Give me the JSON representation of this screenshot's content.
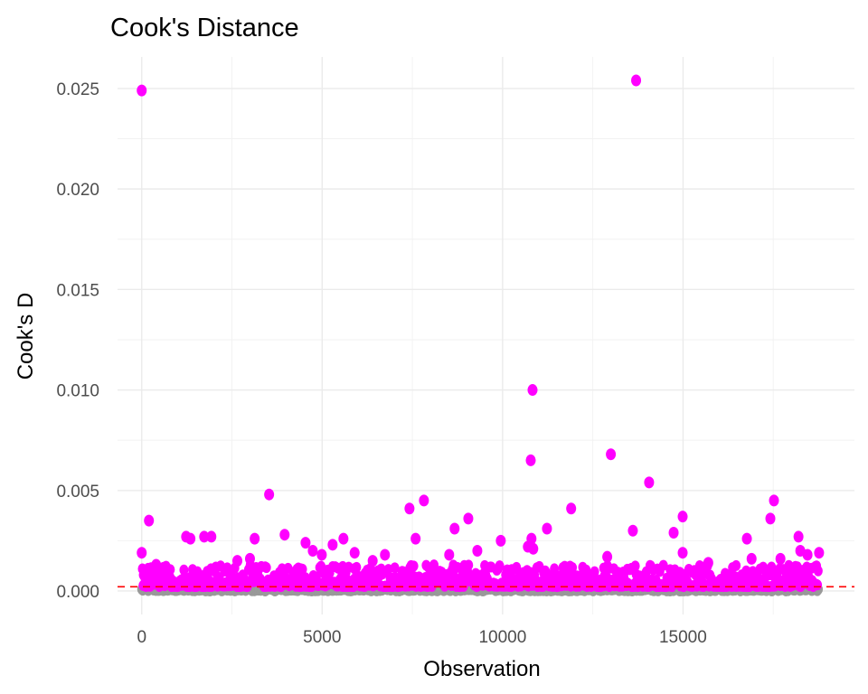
{
  "chart_data": {
    "type": "scatter",
    "title": "Cook's Distance",
    "xlabel": "Observation",
    "ylabel": "Cook's D",
    "xlim": [
      -670,
      19750
    ],
    "ylim": [
      -0.00117,
      0.02657
    ],
    "x_ticks": [
      0,
      5000,
      10000,
      15000
    ],
    "x_tick_labels": [
      "0",
      "5000",
      "10000",
      "15000"
    ],
    "y_ticks": [
      0,
      0.005,
      0.01,
      0.015,
      0.02,
      0.025
    ],
    "y_tick_labels": [
      "0.000",
      "0.005",
      "0.010",
      "0.015",
      "0.020",
      "0.025"
    ],
    "grid": true,
    "threshold": {
      "value": 0.00021,
      "color": "#FF0000",
      "style": "dashed"
    },
    "n_observations": 18750,
    "colors": {
      "influential": "#FF00FF",
      "normal": "#999999"
    },
    "influential_points": [
      [
        0,
        0.0249
      ],
      [
        13700,
        0.0254
      ],
      [
        10830,
        0.01
      ],
      [
        10780,
        0.0065
      ],
      [
        13000,
        0.0068
      ],
      [
        14060,
        0.0054
      ],
      [
        3530,
        0.0048
      ],
      [
        7420,
        0.0041
      ],
      [
        7820,
        0.0045
      ],
      [
        17520,
        0.0045
      ],
      [
        17420,
        0.0036
      ],
      [
        11900,
        0.0041
      ],
      [
        14990,
        0.0037
      ],
      [
        9050,
        0.0036
      ],
      [
        8670,
        0.0031
      ],
      [
        200,
        0.0035
      ],
      [
        11230,
        0.0031
      ],
      [
        13610,
        0.003
      ],
      [
        14740,
        0.0029
      ],
      [
        3960,
        0.0028
      ],
      [
        9950,
        0.0025
      ],
      [
        7590,
        0.0026
      ],
      [
        5590,
        0.0026
      ],
      [
        3130,
        0.0026
      ],
      [
        1230,
        0.0027
      ],
      [
        1350,
        0.0026
      ],
      [
        1730,
        0.0027
      ],
      [
        1930,
        0.0027
      ],
      [
        4540,
        0.0024
      ],
      [
        5290,
        0.0023
      ],
      [
        16770,
        0.0026
      ],
      [
        18200,
        0.0027
      ],
      [
        10800,
        0.0026
      ],
      [
        0,
        0.0019
      ],
      [
        18250,
        0.002
      ],
      [
        18770,
        0.0019
      ],
      [
        14990,
        0.0019
      ],
      [
        9300,
        0.002
      ],
      [
        4740,
        0.002
      ],
      [
        4990,
        0.0018
      ],
      [
        5900,
        0.0019
      ],
      [
        6740,
        0.0018
      ],
      [
        8520,
        0.0018
      ],
      [
        10700,
        0.0022
      ],
      [
        10850,
        0.0021
      ],
      [
        12900,
        0.0017
      ],
      [
        15700,
        0.0014
      ],
      [
        16900,
        0.0016
      ],
      [
        17700,
        0.0016
      ],
      [
        18450,
        0.0018
      ],
      [
        2650,
        0.0015
      ],
      [
        3000,
        0.0016
      ],
      [
        400,
        0.0013
      ],
      [
        6400,
        0.0015
      ]
    ],
    "bulk_influential_range": [
      0.00022,
      0.0013
    ],
    "normal_range": [
      0,
      0.00021
    ]
  }
}
